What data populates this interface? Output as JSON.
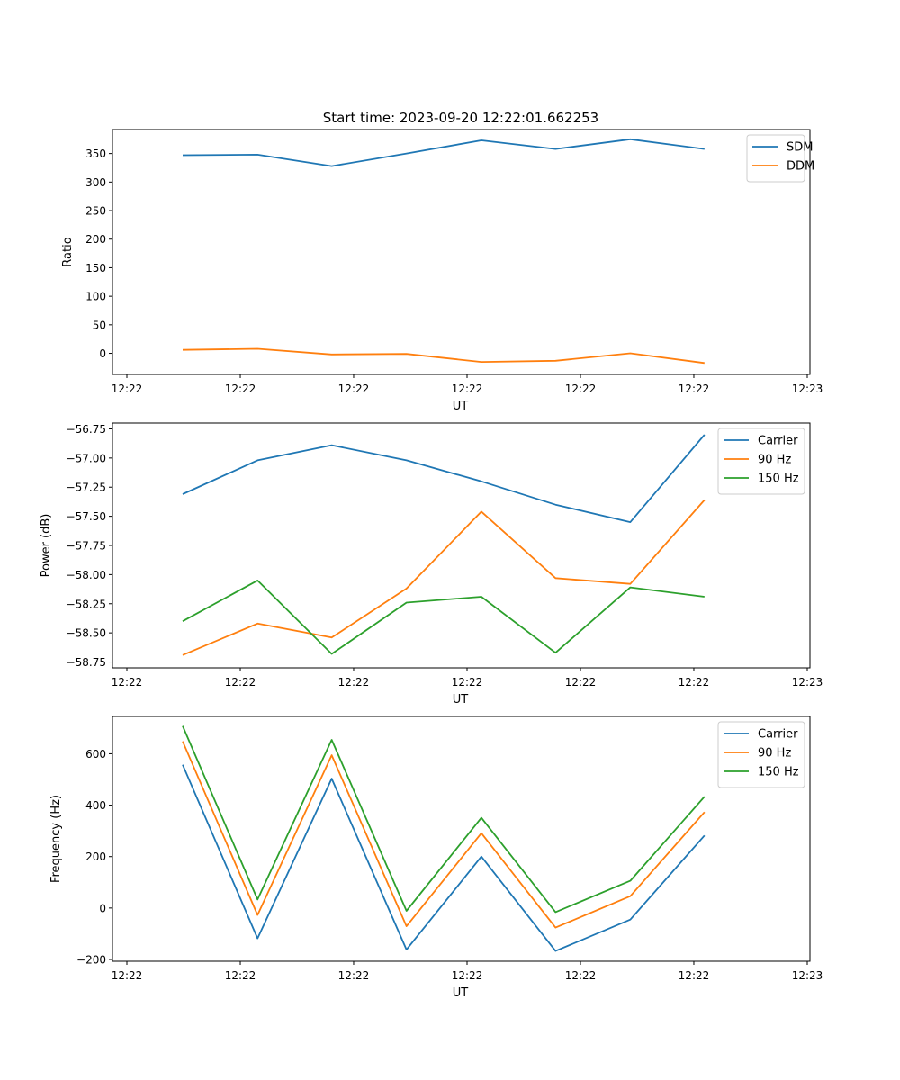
{
  "figure": {
    "title": "Start time: 2023-09-20 12:22:01.662253"
  },
  "chart_data": [
    {
      "type": "line",
      "ylabel": "Ratio",
      "xlabel": "UT",
      "ylim": [
        -37,
        392
      ],
      "yticks": [
        0,
        50,
        100,
        150,
        200,
        250,
        300,
        350
      ],
      "xlim": [
        0,
        1
      ],
      "xticks": [
        {
          "pos": 0.0,
          "label": "12:22"
        },
        {
          "pos": 0.1667,
          "label": "12:22"
        },
        {
          "pos": 0.3333,
          "label": "12:22"
        },
        {
          "pos": 0.5,
          "label": "12:22"
        },
        {
          "pos": 0.6667,
          "label": "12:22"
        },
        {
          "pos": 0.8333,
          "label": "12:22"
        },
        {
          "pos": 1.0,
          "label": "12:23"
        }
      ],
      "x": [
        0.082,
        0.192,
        0.301,
        0.411,
        0.521,
        0.63,
        0.74,
        0.849
      ],
      "legend_position": "upper right",
      "series": [
        {
          "name": "SDM",
          "color": "#1f77b4",
          "values": [
            347,
            348,
            328,
            350,
            373,
            358,
            375,
            358
          ]
        },
        {
          "name": "DDM",
          "color": "#ff7f0e",
          "values": [
            6,
            8,
            -2,
            -1,
            -15,
            -13,
            0,
            -17
          ]
        }
      ]
    },
    {
      "type": "line",
      "ylabel": "Power (dB)",
      "xlabel": "UT",
      "ylim": [
        -58.8,
        -56.7
      ],
      "yticks": [
        -58.75,
        -58.5,
        -58.25,
        -58.0,
        -57.75,
        -57.5,
        -57.25,
        -57.0,
        -56.75
      ],
      "xlim": [
        0,
        1
      ],
      "xticks": [
        {
          "pos": 0.0,
          "label": "12:22"
        },
        {
          "pos": 0.1667,
          "label": "12:22"
        },
        {
          "pos": 0.3333,
          "label": "12:22"
        },
        {
          "pos": 0.5,
          "label": "12:22"
        },
        {
          "pos": 0.6667,
          "label": "12:22"
        },
        {
          "pos": 0.8333,
          "label": "12:22"
        },
        {
          "pos": 1.0,
          "label": "12:23"
        }
      ],
      "x": [
        0.082,
        0.192,
        0.301,
        0.411,
        0.521,
        0.63,
        0.74,
        0.849
      ],
      "legend_position": "upper right",
      "series": [
        {
          "name": "Carrier",
          "color": "#1f77b4",
          "values": [
            -57.31,
            -57.02,
            -56.89,
            -57.02,
            -57.2,
            -57.4,
            -57.55,
            -56.8
          ]
        },
        {
          "name": "90 Hz",
          "color": "#ff7f0e",
          "values": [
            -58.69,
            -58.42,
            -58.54,
            -58.12,
            -57.46,
            -58.03,
            -58.08,
            -57.36
          ]
        },
        {
          "name": "150 Hz",
          "color": "#2ca02c",
          "values": [
            -58.4,
            -58.05,
            -58.68,
            -58.24,
            -58.19,
            -58.67,
            -58.11,
            -58.19
          ]
        }
      ]
    },
    {
      "type": "line",
      "ylabel": "Frequency (Hz)",
      "xlabel": "UT",
      "ylim": [
        -207,
        745
      ],
      "yticks": [
        -200,
        0,
        200,
        400,
        600
      ],
      "xlim": [
        0,
        1
      ],
      "xticks": [
        {
          "pos": 0.0,
          "label": "12:22"
        },
        {
          "pos": 0.1667,
          "label": "12:22"
        },
        {
          "pos": 0.3333,
          "label": "12:22"
        },
        {
          "pos": 0.5,
          "label": "12:22"
        },
        {
          "pos": 0.6667,
          "label": "12:22"
        },
        {
          "pos": 0.8333,
          "label": "12:22"
        },
        {
          "pos": 1.0,
          "label": "12:23"
        }
      ],
      "x": [
        0.082,
        0.192,
        0.301,
        0.411,
        0.521,
        0.63,
        0.74,
        0.849
      ],
      "legend_position": "upper right",
      "series": [
        {
          "name": "Carrier",
          "color": "#1f77b4",
          "values": [
            557,
            -118,
            503,
            -162,
            200,
            -167,
            -45,
            282
          ]
        },
        {
          "name": "90 Hz",
          "color": "#ff7f0e",
          "values": [
            648,
            -27,
            594,
            -71,
            291,
            -76,
            46,
            373
          ]
        },
        {
          "name": "150 Hz",
          "color": "#2ca02c",
          "values": [
            708,
            33,
            654,
            -11,
            351,
            -16,
            106,
            433
          ]
        }
      ]
    }
  ]
}
